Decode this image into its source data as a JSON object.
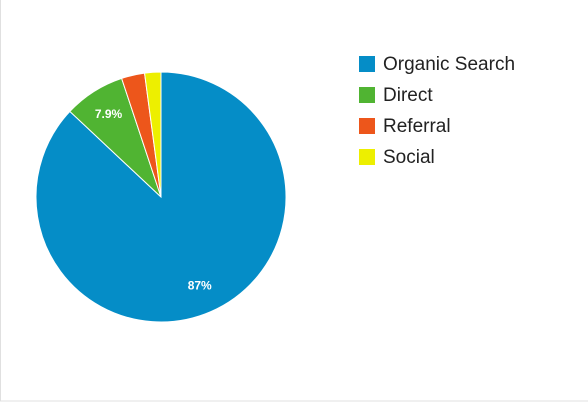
{
  "chart_data": {
    "type": "pie",
    "categories": [
      "Organic Search",
      "Direct",
      "Referral",
      "Social"
    ],
    "values": [
      87,
      7.9,
      3,
      2.1
    ],
    "value_labels": [
      "87%",
      "7.9%",
      null,
      null
    ],
    "colors": [
      "#058dc7",
      "#50b432",
      "#ed561b",
      "#edef00"
    ]
  }
}
